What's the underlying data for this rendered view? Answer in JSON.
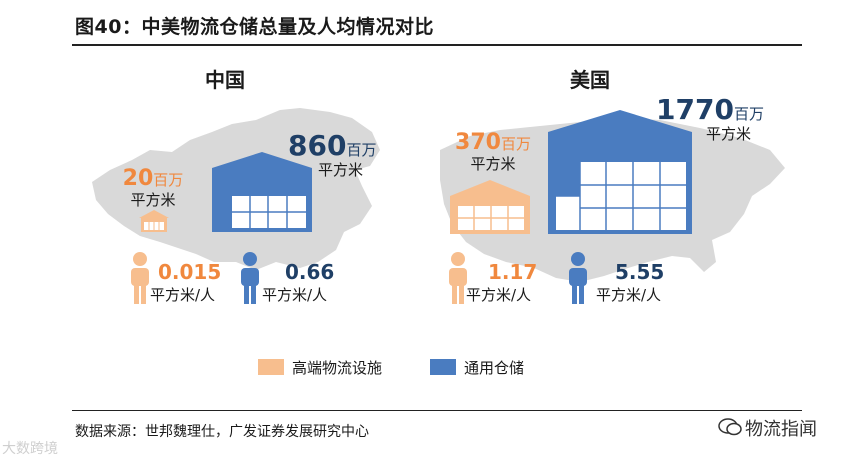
{
  "title": "图40：中美物流仓储总量及人均情况对比",
  "source": "数据来源：世邦魏理仕，广发证券发展研究中心",
  "countries": {
    "china": {
      "name": "中国",
      "highend_total": "20",
      "highend_total_unit_a": "百万",
      "highend_total_unit_b": "平方米",
      "general_total": "860",
      "general_total_unit_a": "百万",
      "general_total_unit_b": "平方米",
      "highend_per_capita": "0.015",
      "highend_per_capita_unit": "平方米/人",
      "general_per_capita": "0.66",
      "general_per_capita_unit": "平方米/人"
    },
    "usa": {
      "name": "美国",
      "highend_total": "370",
      "highend_total_unit_a": "百万",
      "highend_total_unit_b": "平方米",
      "general_total": "1770",
      "general_total_unit_a": "百万",
      "general_total_unit_b": "平方米",
      "highend_per_capita": "1.17",
      "highend_per_capita_unit": "平方米/人",
      "general_per_capita": "5.55",
      "general_per_capita_unit": "平方米/人"
    }
  },
  "legend": {
    "highend": "高端物流设施",
    "general": "通用仓储"
  },
  "colors": {
    "highend": "#f7be8e",
    "highend_text": "#f0883e",
    "general": "#4a7cc0",
    "general_text": "#1f4e79",
    "map": "#d9d9d9"
  },
  "watermarks": {
    "left": "大数跨境",
    "right": "物流指闻"
  }
}
